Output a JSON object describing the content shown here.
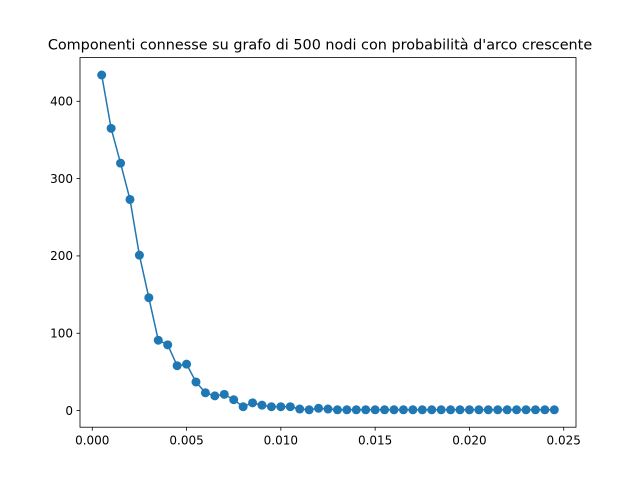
{
  "chart_data": {
    "type": "line",
    "title": "Componenti connesse su grafo di 500 nodi con probabilità d'arco crescente",
    "xlabel": "",
    "ylabel": "",
    "x_ticks": [
      "0.000",
      "0.005",
      "0.010",
      "0.015",
      "0.020",
      "0.025"
    ],
    "y_ticks": [
      "0",
      "100",
      "200",
      "300",
      "400"
    ],
    "xlim": [
      -0.00065,
      0.02565
    ],
    "ylim": [
      -21.5,
      456.5
    ],
    "grid": false,
    "marker": "circle",
    "colors": {
      "series": "#1f77b4",
      "axes": "#000000",
      "background": "#ffffff"
    },
    "series": [
      {
        "x": [
          0.0005,
          0.001,
          0.0015,
          0.002,
          0.0025,
          0.003,
          0.0035,
          0.004,
          0.0045,
          0.005,
          0.0055,
          0.006,
          0.0065,
          0.007,
          0.0075,
          0.008,
          0.0085,
          0.009,
          0.0095,
          0.01,
          0.0105,
          0.011,
          0.0115,
          0.012,
          0.0125,
          0.013,
          0.0135,
          0.014,
          0.0145,
          0.015,
          0.0155,
          0.016,
          0.0165,
          0.017,
          0.0175,
          0.018,
          0.0185,
          0.019,
          0.0195,
          0.02,
          0.0205,
          0.021,
          0.0215,
          0.022,
          0.0225,
          0.023,
          0.0235,
          0.024,
          0.0245
        ],
        "values": [
          434,
          365,
          320,
          273,
          201,
          146,
          91,
          85,
          58,
          60,
          37,
          23,
          19,
          21,
          14,
          5,
          10,
          7,
          5,
          5,
          5,
          2,
          1,
          3,
          2,
          1,
          1,
          1,
          1,
          1,
          1,
          1,
          1,
          1,
          1,
          1,
          1,
          1,
          1,
          1,
          1,
          1,
          1,
          1,
          1,
          1,
          1,
          1,
          1
        ]
      }
    ]
  }
}
